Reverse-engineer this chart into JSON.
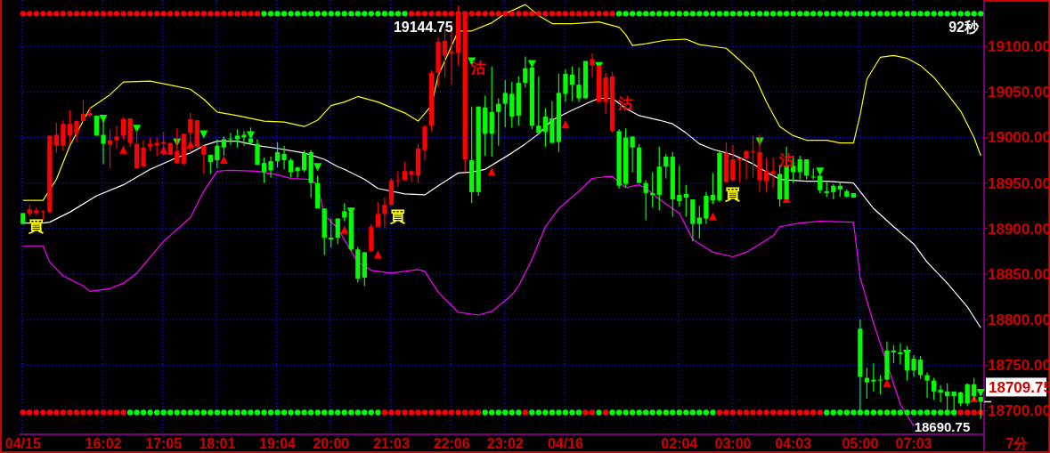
{
  "chart_data": {
    "type": "candlestick",
    "categories": [
      "04/15",
      null,
      null,
      null,
      null,
      null,
      null,
      null,
      null,
      null,
      null,
      null,
      "16:02",
      null,
      null,
      null,
      null,
      null,
      null,
      null,
      null,
      "17:05",
      null,
      null,
      null,
      null,
      null,
      null,
      null,
      "18:01",
      null,
      null,
      null,
      null,
      null,
      null,
      null,
      null,
      "19:04",
      null,
      null,
      null,
      null,
      null,
      null,
      null,
      "20:00",
      null,
      null,
      null,
      null,
      null,
      null,
      null,
      null,
      "21:03",
      null,
      null,
      null,
      null,
      null,
      null,
      null,
      null,
      "22:06",
      null,
      null,
      null,
      null,
      null,
      null,
      null,
      "23:02",
      null,
      null,
      null,
      null,
      null,
      null,
      null,
      null,
      "04/16",
      null,
      null,
      null,
      null,
      null,
      null,
      null,
      null,
      null,
      null,
      null,
      null,
      null,
      null,
      null,
      null,
      "02:04",
      null,
      null,
      null,
      null,
      null,
      null,
      null,
      "03:00",
      null,
      null,
      null,
      null,
      null,
      null,
      null,
      null,
      "04:03",
      null,
      null,
      null,
      null,
      null,
      null,
      null,
      null,
      null,
      "05:00",
      null,
      null,
      null,
      null,
      null,
      null,
      null,
      "07:03",
      null,
      null,
      null,
      null,
      null,
      null,
      null,
      null,
      null,
      null
    ],
    "ohlc": [
      [
        18917,
        18917,
        18905,
        18905
      ],
      [
        18916,
        18926,
        18913,
        18921
      ],
      [
        18917,
        18923,
        18915,
        18920
      ],
      [
        18918,
        18920,
        18909,
        18919
      ],
      [
        18918,
        19002,
        18917,
        19002
      ],
      [
        18991,
        19016,
        18983,
        19003
      ],
      [
        18991,
        19019,
        18985,
        19015
      ],
      [
        19002,
        19030,
        18993,
        19015
      ],
      [
        19004,
        19018,
        18995,
        19018
      ],
      [
        19018,
        19041,
        19017,
        19026
      ],
      [
        19024,
        19033,
        19023,
        19027
      ],
      [
        19024,
        19024,
        19002,
        19002
      ],
      [
        19003,
        19019,
        18971,
        18993
      ],
      [
        18992,
        19009,
        18966,
        18997
      ],
      [
        18997,
        19013,
        18988,
        19001
      ],
      [
        19002,
        19022,
        18998,
        19020
      ],
      [
        18994,
        19021,
        18990,
        19021
      ],
      [
        18966,
        19009,
        18966,
        18993
      ],
      [
        18968,
        18997,
        18968,
        18989
      ],
      [
        18990,
        19000,
        18985,
        18993
      ],
      [
        18991,
        19000,
        18980,
        18994
      ],
      [
        18993,
        19006,
        18980,
        18995
      ],
      [
        18981,
        18994,
        18981,
        18994
      ],
      [
        18972,
        19010,
        18971,
        18985
      ],
      [
        18971,
        19004,
        18970,
        19004
      ],
      [
        19005,
        19027,
        18983,
        19020
      ],
      [
        18990,
        19019,
        18989,
        19019
      ],
      [
        18981,
        18991,
        18960,
        18991
      ],
      [
        18981,
        18981,
        18960,
        18973
      ],
      [
        18991,
        18998,
        18966,
        18975
      ],
      [
        18998,
        19001,
        18980,
        18989
      ],
      [
        18999,
        19005,
        18992,
        18998
      ],
      [
        19002,
        19009,
        18989,
        18998
      ],
      [
        19003,
        19007,
        18991,
        19000
      ],
      [
        18999,
        19011,
        18993,
        18994
      ],
      [
        18993,
        18998,
        18970,
        18970
      ],
      [
        18972,
        18978,
        18950,
        18962
      ],
      [
        18974,
        18979,
        18956,
        18964
      ],
      [
        18984,
        18995,
        18967,
        18974
      ],
      [
        18982,
        18991,
        18965,
        18975
      ],
      [
        18975,
        18977,
        18956,
        18962
      ],
      [
        18967,
        18968,
        18956,
        18963
      ],
      [
        18983,
        18986,
        18962,
        18964
      ],
      [
        18984,
        18986,
        18934,
        18950
      ],
      [
        18950,
        18958,
        18922,
        18922
      ],
      [
        18922,
        18922,
        18871,
        18890
      ],
      [
        18890,
        18911,
        18879,
        18888
      ],
      [
        18911,
        18911,
        18883,
        18890
      ],
      [
        18919,
        18928,
        18908,
        18912
      ],
      [
        18918,
        18923,
        18875,
        18877
      ],
      [
        18877,
        18880,
        18841,
        18845
      ],
      [
        18874,
        18874,
        18837,
        18846
      ],
      [
        18875,
        18905,
        18875,
        18902
      ],
      [
        18902,
        18929,
        18902,
        18916
      ],
      [
        18916,
        18934,
        18901,
        18926
      ],
      [
        18926,
        18955,
        18925,
        18953
      ],
      [
        18952,
        18963,
        18946,
        18953
      ],
      [
        18953,
        18973,
        18953,
        18963
      ],
      [
        18959,
        18964,
        18951,
        18963
      ],
      [
        18958,
        18993,
        18950,
        18988
      ],
      [
        18986,
        19014,
        18975,
        19012
      ],
      [
        19013,
        19074,
        19007,
        19071
      ],
      [
        19071,
        19110,
        19055,
        19105
      ],
      [
        19090,
        19119,
        19066,
        19106
      ],
      [
        19092,
        19125,
        19058,
        19094
      ],
      [
        19093,
        19144.75,
        19079,
        19134
      ],
      [
        18976,
        19135,
        18962,
        19134
      ],
      [
        18975,
        19034,
        18928,
        18940
      ],
      [
        19034,
        19034,
        18936,
        18940
      ],
      [
        19033,
        19046,
        18980,
        19004
      ],
      [
        19028,
        19078,
        18979,
        19004
      ],
      [
        19037,
        19043,
        18991,
        19028
      ],
      [
        19049,
        19063,
        19011,
        19037
      ],
      [
        19048,
        19061,
        19011,
        19023
      ],
      [
        19060,
        19067,
        19013,
        19024
      ],
      [
        19076,
        19089,
        19055,
        19060
      ],
      [
        19077,
        19077,
        19009,
        19013
      ],
      [
        19013,
        19067,
        19005,
        19005
      ],
      [
        19023,
        19032,
        18990,
        19006
      ],
      [
        19021,
        19040,
        18994,
        18994
      ],
      [
        19049,
        19070,
        18984,
        18995
      ],
      [
        19070,
        19075,
        19039,
        19048
      ],
      [
        19069,
        19078,
        19040,
        19058
      ],
      [
        19058,
        19077,
        19039,
        19043
      ],
      [
        19084,
        19084,
        19043,
        19043
      ],
      [
        19079,
        19092,
        19066,
        19086
      ],
      [
        19039,
        19079,
        19039,
        19079
      ],
      [
        19039,
        19071,
        19026,
        19066
      ],
      [
        19007,
        19072,
        19005,
        19067
      ],
      [
        19007,
        19009,
        18944,
        18947
      ],
      [
        19000,
        19010,
        18945,
        18949
      ],
      [
        19001,
        19001,
        18962,
        18989
      ],
      [
        18989,
        18993,
        18950,
        18950
      ],
      [
        18950,
        18953,
        18909,
        18939
      ],
      [
        18939,
        18962,
        18923,
        18937
      ],
      [
        18968,
        18990,
        18920,
        18937
      ],
      [
        18979,
        18982,
        18955,
        18968
      ],
      [
        18979,
        18984,
        18913,
        18932
      ],
      [
        18937,
        18969,
        18924,
        18930
      ],
      [
        18938,
        18948,
        18913,
        18934
      ],
      [
        18932,
        18932,
        18886,
        18905
      ],
      [
        18912,
        18925,
        18889,
        18905
      ],
      [
        18936,
        18940,
        18905,
        18911
      ],
      [
        18937,
        18961,
        18927,
        18931
      ],
      [
        18983,
        18985,
        18929,
        18931
      ],
      [
        18951,
        18995,
        18951,
        18983
      ],
      [
        18953,
        18992,
        18952,
        18976
      ],
      [
        18976,
        18977,
        18951,
        18977
      ],
      [
        18977,
        18986,
        18954,
        18985
      ],
      [
        18984,
        19002,
        18956,
        18985
      ],
      [
        18953,
        19003,
        18940,
        18984
      ],
      [
        18952,
        18978,
        18940,
        18963
      ],
      [
        18960,
        18978,
        18945,
        18963
      ],
      [
        18960,
        18970,
        18924,
        18932
      ],
      [
        18969,
        18990,
        18932,
        18932
      ],
      [
        18969,
        18980,
        18950,
        18962
      ],
      [
        18976,
        18980,
        18954,
        18962
      ],
      [
        18976,
        18976,
        18954,
        18958
      ],
      [
        18957,
        18966,
        18954,
        18956
      ],
      [
        18958,
        18959,
        18939,
        18942
      ],
      [
        18941,
        18951,
        18935,
        18939
      ],
      [
        18947,
        18949,
        18932,
        18940
      ],
      [
        18947,
        18951,
        18935,
        18943
      ],
      [
        18941,
        18943,
        18934,
        18935
      ],
      [
        18939,
        18939,
        18934,
        18934
      ],
      [
        18790,
        18800,
        18698,
        18737
      ],
      [
        18736,
        18747,
        18713,
        18731
      ],
      [
        18734,
        18752,
        18721,
        18732
      ],
      [
        18734,
        18739,
        18718,
        18733
      ],
      [
        18766,
        18776,
        18734,
        18734
      ],
      [
        18766,
        18772,
        18752,
        18764
      ],
      [
        18764,
        18774,
        18751,
        18762
      ],
      [
        18762,
        18771,
        18733,
        18744
      ],
      [
        18757,
        18761,
        18737,
        18744
      ],
      [
        18756,
        18760,
        18735,
        18739
      ],
      [
        18739,
        18742,
        18714,
        18733
      ],
      [
        18733,
        18736,
        18712,
        18721
      ],
      [
        18723,
        18728,
        18709,
        18720
      ],
      [
        18721,
        18730,
        18695,
        18716
      ],
      [
        18721,
        18721,
        18695,
        18716
      ],
      [
        18720,
        18721,
        18705,
        18708
      ],
      [
        18729,
        18730,
        18705,
        18708
      ],
      [
        18729,
        18736,
        18711,
        18716
      ],
      [
        18715,
        18715,
        18690.75,
        18709.75
      ]
    ],
    "ylim": [
      18674,
      19151
    ],
    "yticks": [
      {
        "value": 18700,
        "label": "18700.00"
      },
      {
        "value": 18750,
        "label": "18750.00"
      },
      {
        "value": 18800,
        "label": "18800.00"
      },
      {
        "value": 18850,
        "label": "18850.00"
      },
      {
        "value": 18900,
        "label": "18900.00"
      },
      {
        "value": 18950,
        "label": "18950.00"
      },
      {
        "value": 19000,
        "label": "19000.00"
      },
      {
        "value": 19050,
        "label": "19050.00"
      },
      {
        "value": 19100,
        "label": "19100.00"
      }
    ],
    "grid": true,
    "annotations": [
      "19144.75",
      "18690.75",
      "18709.75",
      "92秒",
      "買",
      "買",
      "買",
      "沽",
      "沽",
      "沽"
    ],
    "xlabel": "7分",
    "series": [
      {
        "type": "line",
        "color": "#ffff00",
        "values": [
          18931,
          null,
          null,
          18931,
          null,
          18954,
          null,
          18991,
          null,
          null,
          19032,
          null,
          null,
          19047,
          null,
          19061,
          null,
          null,
          null,
          19062,
          null,
          null,
          null,
          19056,
          null,
          19053,
          null,
          19042,
          null,
          19028,
          null,
          null,
          19024,
          null,
          null,
          null,
          19018,
          null,
          null,
          19017,
          null,
          null,
          19012,
          null,
          19019,
          null,
          19035,
          null,
          19039,
          null,
          19045,
          null,
          null,
          19039,
          null,
          null,
          null,
          19027,
          null,
          19018,
          null,
          19035,
          19068,
          null,
          null,
          19117,
          null,
          19117,
          null,
          null,
          19126,
          null,
          19136,
          null,
          null,
          19146,
          null,
          19134,
          null,
          19125,
          null,
          null,
          19125,
          null,
          null,
          null,
          19127,
          null,
          null,
          19121,
          19113,
          19101,
          null,
          19103,
          null,
          null,
          19107,
          null,
          null,
          19108,
          null,
          19102,
          null,
          null,
          null,
          19098,
          null,
          19085,
          null,
          19071,
          null,
          19039,
          null,
          19012,
          null,
          19002,
          null,
          18997,
          null,
          null,
          18997,
          null,
          18994,
          null,
          18994,
          19025,
          19064,
          null,
          19088,
          null,
          19090,
          null,
          19087,
          null,
          19079,
          null,
          19066,
          null,
          19048,
          null,
          19029,
          null,
          19000,
          18980
        ]
      },
      {
        "type": "line",
        "color": "#ffffff",
        "values": [
          18906,
          null,
          null,
          18906,
          18907,
          null,
          null,
          18918,
          null,
          null,
          null,
          18936,
          null,
          null,
          null,
          18948,
          null,
          null,
          null,
          18965,
          null,
          null,
          null,
          18978,
          null,
          18983,
          null,
          18991,
          null,
          18996,
          null,
          null,
          18996,
          null,
          null,
          18991,
          null,
          null,
          18988,
          null,
          null,
          null,
          18983,
          null,
          null,
          18976,
          null,
          18968,
          18965,
          null,
          null,
          18954,
          null,
          18944,
          null,
          null,
          null,
          18938,
          null,
          null,
          18937,
          null,
          18947,
          null,
          null,
          18961,
          null,
          18962,
          null,
          18965,
          null,
          null,
          null,
          18983,
          null,
          18993,
          null,
          19004,
          null,
          19019,
          null,
          null,
          19030,
          null,
          null,
          19040,
          19043,
          null,
          19043,
          null,
          19032,
          null,
          19024,
          null,
          null,
          19019,
          null,
          19015,
          null,
          19005,
          null,
          18993,
          null,
          18987,
          null,
          null,
          18981,
          null,
          null,
          18971,
          null,
          18962,
          null,
          18954,
          null,
          null,
          null,
          18952,
          null,
          null,
          18952,
          null,
          null,
          null,
          18950,
          null,
          null,
          18922,
          null,
          null,
          18902,
          null,
          null,
          18883,
          null,
          18863,
          null,
          null,
          18840,
          null,
          null,
          18814,
          null,
          18791
        ]
      },
      {
        "type": "line",
        "color": "#ff00ff",
        "values": [
          18881,
          null,
          null,
          18881,
          18863,
          null,
          18848,
          null,
          null,
          18837,
          18831,
          null,
          null,
          18834,
          null,
          18840,
          null,
          18851,
          null,
          null,
          null,
          18886,
          null,
          null,
          null,
          18912,
          null,
          18941,
          null,
          18963,
          null,
          18964,
          null,
          null,
          null,
          18963,
          null,
          null,
          18959,
          null,
          18955,
          null,
          null,
          18954,
          18947,
          18915,
          null,
          18900,
          null,
          null,
          18863,
          null,
          18854,
          null,
          null,
          18851,
          null,
          null,
          null,
          18855,
          18853,
          null,
          18830,
          null,
          null,
          18808,
          null,
          null,
          18805,
          null,
          18809,
          null,
          null,
          18827,
          18837,
          null,
          18866,
          null,
          18902,
          null,
          18922,
          null,
          null,
          18941,
          null,
          18955,
          null,
          18957,
          18957,
          null,
          18945,
          null,
          18948,
          18944,
          null,
          null,
          18927,
          null,
          18917,
          null,
          18888,
          null,
          null,
          18874,
          null,
          null,
          18869,
          null,
          18874,
          null,
          18883,
          null,
          18892,
          18902,
          null,
          null,
          18906,
          null,
          null,
          18908,
          null,
          null,
          null,
          null,
          18907,
          18846,
          null,
          18796,
          null,
          null,
          null,
          18707,
          null,
          18683,
          null,
          null,
          null,
          null,
          null,
          null,
          null,
          null,
          null,
          null
        ]
      },
      {
        "type": "scatter",
        "marker": "triangle",
        "color": "#ff0000",
        "values": [
          null,
          null,
          null,
          null,
          null,
          null,
          null,
          null,
          null,
          null,
          null,
          null,
          null,
          null,
          null,
          18986,
          null,
          null,
          null,
          null,
          null,
          18986,
          null,
          null,
          null,
          18992,
          null,
          null,
          null,
          null,
          18975,
          null,
          null,
          null,
          null,
          null,
          null,
          null,
          null,
          null,
          null,
          null,
          null,
          null,
          null,
          null,
          null,
          null,
          18898,
          null,
          null,
          null,
          null,
          18871,
          null,
          null,
          null,
          null,
          null,
          null,
          null,
          null,
          null,
          null,
          null,
          null,
          null,
          null,
          null,
          null,
          18962,
          null,
          null,
          null,
          null,
          null,
          null,
          null,
          null,
          null,
          null,
          19014,
          null,
          null,
          null,
          null,
          null,
          null,
          null,
          null,
          null,
          null,
          null,
          null,
          null,
          null,
          null,
          null,
          null,
          null,
          null,
          null,
          null,
          18913,
          null,
          null,
          null,
          null,
          null,
          null,
          null,
          null,
          null,
          null,
          18932,
          null,
          null,
          null,
          null,
          null,
          null,
          null,
          null,
          null,
          null,
          null,
          null,
          null,
          null,
          18730,
          null,
          null,
          null,
          null,
          null,
          null,
          null,
          null,
          null,
          null,
          null,
          null,
          18713,
          null
        ]
      },
      {
        "type": "scatter",
        "marker": "triangle",
        "color": "#00ff00",
        "values": [
          null,
          null,
          null,
          null,
          null,
          null,
          null,
          null,
          null,
          null,
          null,
          null,
          19021,
          null,
          null,
          null,
          null,
          19010,
          null,
          null,
          null,
          null,
          null,
          18995,
          null,
          null,
          null,
          19004,
          null,
          null,
          null,
          null,
          null,
          null,
          19003,
          null,
          null,
          null,
          null,
          null,
          null,
          null,
          null,
          null,
          18968,
          null,
          null,
          null,
          null,
          18919,
          null,
          null,
          null,
          null,
          null,
          null,
          null,
          null,
          null,
          null,
          null,
          null,
          null,
          null,
          null,
          null,
          null,
          19084,
          null,
          null,
          null,
          null,
          null,
          null,
          null,
          null,
          19081,
          null,
          null,
          null,
          null,
          null,
          null,
          null,
          null,
          null,
          19079,
          null,
          null,
          null,
          null,
          null,
          null,
          null,
          null,
          null,
          null,
          null,
          null,
          null,
          null,
          null,
          null,
          null,
          null,
          null,
          null,
          null,
          null,
          null,
          18996,
          null,
          null,
          null,
          null,
          null,
          null,
          null,
          null,
          18963,
          null,
          null,
          null,
          null,
          null,
          null,
          null,
          null,
          null,
          null,
          null,
          null,
          18763,
          null,
          null,
          null,
          null,
          null,
          null,
          null,
          null,
          null,
          null,
          18720
        ]
      },
      {
        "type": "scatter",
        "marker": "circle",
        "values": [
          19136,
          19136,
          19136,
          19136,
          19136,
          19136,
          19136,
          19136,
          19136,
          19136,
          19136,
          19136,
          19136,
          19136,
          19136,
          19136,
          19136,
          19136,
          19136,
          19136,
          19136,
          19136,
          19136,
          19136,
          19136,
          19136,
          19136,
          19136,
          19136,
          19136,
          19136,
          19136,
          19136,
          19136,
          19136,
          19136,
          19136,
          19136,
          19136,
          19136,
          19136,
          19136,
          19136,
          19136,
          19136,
          19136,
          19136,
          19136,
          19136,
          19136,
          19136,
          19136,
          19136,
          19136,
          19136,
          19136,
          19136,
          19136,
          19136,
          19136,
          19136,
          19136,
          19136,
          19136,
          19136,
          19136,
          19136,
          19136,
          19136,
          19136,
          19136,
          19136,
          19136,
          19136,
          19136,
          19136,
          19136,
          19136,
          19136,
          19136,
          19136,
          19136,
          19136,
          19136,
          19136,
          19136,
          19136,
          19136,
          19136,
          19136,
          19136,
          19136,
          19136,
          19136,
          19136,
          19136,
          19136,
          19136,
          19136,
          19136,
          19136,
          19136,
          19136,
          19136,
          19136,
          19136,
          19136,
          19136,
          19136,
          19136,
          19136,
          19136,
          19136,
          19136,
          19136,
          19136,
          19136,
          19136,
          19136,
          19136,
          19136,
          19136,
          19136,
          19136,
          19136,
          19136,
          19136,
          19136,
          19136,
          19136,
          19136,
          19136,
          19136,
          19136,
          19136,
          19136,
          19136,
          19136,
          19136,
          19136,
          19136,
          19136,
          19136,
          19136
        ],
        "colors": [
          "#ff0000",
          "#ff0000",
          "#ff0000",
          "#ff0000",
          "#ff0000",
          "#ff0000",
          "#ff0000",
          "#ff0000",
          "#ff0000",
          "#ff0000",
          "#ff0000",
          "#ff0000",
          "#ff0000",
          "#ff0000",
          "#ff0000",
          "#ff0000",
          "#ff0000",
          "#ff0000",
          "#ff0000",
          "#ff0000",
          "#ff0000",
          "#ff0000",
          "#ff0000",
          "#ff0000",
          "#ff0000",
          "#ff0000",
          "#ff0000",
          "#ff0000",
          "#ff0000",
          "#ff0000",
          "#ff0000",
          "#ff0000",
          "#ff0000",
          "#ff0000",
          "#ff0000",
          "#ff0000",
          "#00ff00",
          "#00ff00",
          "#00ff00",
          "#00ff00",
          "#00ff00",
          "#00ff00",
          "#00ff00",
          "#00ff00",
          "#00ff00",
          "#00ff00",
          "#00ff00",
          "#00ff00",
          "#00ff00",
          "#00ff00",
          "#00ff00",
          "#00ff00",
          "#00ff00",
          "#00ff00",
          "#00ff00",
          "#00ff00",
          "#00ff00",
          "#00ff00",
          "#ff0000",
          "#ff0000",
          "#ff0000",
          "#ff0000",
          "#ff0000",
          "#ff0000",
          "#ff0000",
          "#ff0000",
          "#ff0000",
          "#ff0000",
          "#ff0000",
          "#ff0000",
          "#ff0000",
          "#ff0000",
          "#ff0000",
          "#ff0000",
          "#ff0000",
          "#ff0000",
          "#ff0000",
          "#ff0000",
          "#ff0000",
          "#ff0000",
          "#ff0000",
          "#ff0000",
          "#ff0000",
          "#ff0000",
          "#ff0000",
          "#ff0000",
          "#ff0000",
          "#ff0000",
          "#ff0000",
          "#00ff00",
          "#00ff00",
          "#00ff00",
          "#00ff00",
          "#00ff00",
          "#00ff00",
          "#00ff00",
          "#00ff00",
          "#00ff00",
          "#00ff00",
          "#00ff00",
          "#00ff00",
          "#00ff00",
          "#00ff00",
          "#00ff00",
          "#00ff00",
          "#00ff00",
          "#00ff00",
          "#00ff00",
          "#00ff00",
          "#00ff00",
          "#00ff00",
          "#00ff00",
          "#00ff00",
          "#00ff00",
          "#00ff00",
          "#00ff00",
          "#00ff00",
          "#00ff00",
          "#00ff00",
          "#00ff00",
          "#00ff00",
          "#00ff00",
          "#00ff00",
          "#00ff00",
          "#00ff00",
          "#00ff00",
          "#00ff00",
          "#00ff00",
          "#00ff00",
          "#00ff00",
          "#00ff00",
          "#00ff00",
          "#00ff00",
          "#00ff00",
          "#00ff00",
          "#00ff00",
          "#00ff00",
          "#00ff00",
          "#00ff00",
          "#00ff00",
          "#00ff00",
          "#00ff00",
          "#00ff00",
          "#00ff00"
        ]
      },
      {
        "type": "scatter",
        "marker": "circle",
        "values": [
          18698,
          18698,
          18698,
          18698,
          18698,
          18698,
          18698,
          18698,
          18698,
          18698,
          18698,
          18698,
          18698,
          18698,
          18698,
          18698,
          18698,
          18698,
          18698,
          18698,
          18698,
          18698,
          18698,
          18698,
          18698,
          18698,
          18698,
          18698,
          18698,
          18698,
          18698,
          18698,
          18698,
          18698,
          18698,
          18698,
          18698,
          18698,
          18698,
          18698,
          18698,
          18698,
          18698,
          18698,
          18698,
          18698,
          18698,
          18698,
          18698,
          18698,
          18698,
          18698,
          18698,
          18698,
          18698,
          18698,
          18698,
          18698,
          18698,
          18698,
          18698,
          18698,
          18698,
          18698,
          18698,
          18698,
          18698,
          18698,
          18698,
          18698,
          18698,
          18698,
          18698,
          18698,
          18698,
          18698,
          18698,
          18698,
          18698,
          18698,
          18698,
          18698,
          18698,
          18698,
          18698,
          18698,
          18698,
          18698,
          18698,
          18698,
          18698,
          18698,
          18698,
          18698,
          18698,
          18698,
          18698,
          18698,
          18698,
          18698,
          18698,
          18698,
          18698,
          18698,
          18698,
          18698,
          18698,
          18698,
          18698,
          18698,
          18698,
          18698,
          18698,
          18698,
          18698,
          18698,
          18698,
          18698,
          18698,
          18698,
          18698,
          18698,
          18698,
          18698,
          18698,
          18698,
          18698,
          18698,
          18698,
          18698,
          18698,
          18698,
          18698,
          18698,
          18698,
          18698,
          18698,
          18698,
          18698,
          18698,
          18698,
          18698,
          18698,
          18698
        ],
        "colors": [
          "#ff0000",
          "#ff0000",
          "#ff0000",
          "#ff0000",
          "#ff0000",
          "#ff0000",
          "#ff0000",
          "#ff0000",
          "#ff0000",
          "#ff0000",
          "#ff0000",
          "#ff0000",
          "#ff0000",
          "#ff0000",
          "#ff0000",
          "#ff0000",
          "#00ff00",
          "#00ff00",
          "#00ff00",
          "#00ff00",
          "#00ff00",
          "#00ff00",
          "#00ff00",
          "#00ff00",
          "#00ff00",
          "#00ff00",
          "#00ff00",
          "#00ff00",
          "#00ff00",
          "#00ff00",
          "#00ff00",
          "#00ff00",
          "#00ff00",
          "#00ff00",
          "#00ff00",
          "#00ff00",
          "#00ff00",
          "#00ff00",
          "#00ff00",
          "#00ff00",
          "#00ff00",
          "#00ff00",
          "#00ff00",
          "#00ff00",
          "#00ff00",
          "#00ff00",
          "#00ff00",
          "#00ff00",
          "#00ff00",
          "#00ff00",
          "#00ff00",
          "#00ff00",
          "#00ff00",
          "#00ff00",
          "#ff0000",
          "#ff0000",
          "#ff0000",
          "#ff0000",
          "#ff0000",
          "#ff0000",
          "#ff0000",
          "#ff0000",
          "#ff0000",
          "#ff0000",
          "#ff0000",
          "#ff0000",
          "#ff0000",
          "#ff0000",
          "#ff0000",
          "#00ff00",
          "#00ff00",
          "#00ff00",
          "#00ff00",
          "#00ff00",
          "#00ff00",
          "#ff0000",
          "#00ff00",
          "#00ff00",
          "#00ff00",
          "#00ff00",
          "#00ff00",
          "#00ff00",
          "#00ff00",
          "#00ff00",
          "#ff0000",
          "#ff0000",
          "#00ff00",
          "#ff0000",
          "#00ff00",
          "#00ff00",
          "#00ff00",
          "#00ff00",
          "#00ff00",
          "#00ff00",
          "#00ff00",
          "#00ff00",
          "#00ff00",
          "#00ff00",
          "#00ff00",
          "#00ff00",
          "#00ff00",
          "#00ff00",
          "#00ff00",
          "#00ff00",
          "#ff0000",
          "#ff0000",
          "#ff0000",
          "#ff0000",
          "#ff0000",
          "#ff0000",
          "#ff0000",
          "#ff0000",
          "#ff0000",
          "#ff0000",
          "#ff0000",
          "#ff0000",
          "#ff0000",
          "#ff0000",
          "#ff0000",
          "#ff0000",
          "#00ff00",
          "#00ff00",
          "#00ff00",
          "#00ff00",
          "#00ff00",
          "#00ff00",
          "#00ff00",
          "#00ff00",
          "#00ff00",
          "#00ff00",
          "#00ff00",
          "#00ff00",
          "#00ff00",
          "#00ff00",
          "#00ff00",
          "#00ff00",
          "#00ff00",
          "#00ff00",
          "#00ff00",
          "#00ff00",
          "#ff0000",
          "#ff0000",
          "#ff0000",
          "#ff0000"
        ]
      }
    ]
  }
}
